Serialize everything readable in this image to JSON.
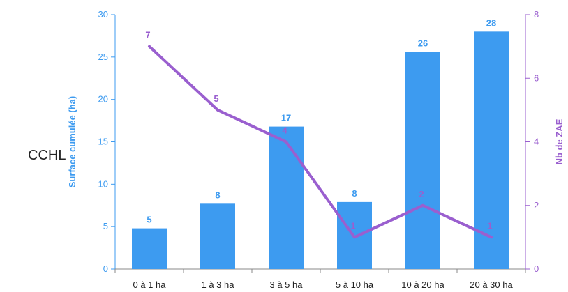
{
  "side_label": "CCHL",
  "chart_data": {
    "type": "bar+line",
    "categories": [
      "0 à 1 ha",
      "1 à 3 ha",
      "3 à 5 ha",
      "5 à 10 ha",
      "10 à 20 ha",
      "20 à 30 ha"
    ],
    "bars": {
      "values": [
        4.8,
        7.7,
        16.8,
        7.9,
        25.6,
        28.0
      ],
      "labels": [
        "5",
        "8",
        "17",
        "8",
        "26",
        "28"
      ],
      "axis_label": "Surface cumulée (ha)",
      "ylim": [
        0,
        30
      ],
      "ticks": [
        0,
        5,
        10,
        15,
        20,
        25,
        30
      ],
      "color": "#3d9bf0"
    },
    "line": {
      "values": [
        7,
        5,
        4,
        1,
        2,
        1
      ],
      "labels": [
        "7",
        "5",
        "4",
        "1",
        "2",
        "1"
      ],
      "axis_label": "Nb de ZAE",
      "ylim": [
        0,
        8
      ],
      "ticks": [
        0,
        2,
        4,
        6,
        8
      ],
      "color": "#9a5fcf"
    },
    "grid": false,
    "legend": "none"
  }
}
